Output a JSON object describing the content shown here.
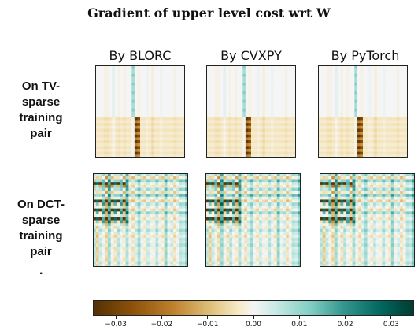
{
  "title": "Gradient of upper level cost wrt W",
  "chart_data": {
    "type": "heatmap",
    "title": "Gradient of upper level cost wrt W",
    "columns": [
      "By BLORC",
      "By CVXPY",
      "By PyTorch"
    ],
    "rows": [
      {
        "label": "On TV-\nsparse\ntraining\npair",
        "trailing_mark": ""
      },
      {
        "label": "On DCT-\nsparse\ntraining\npair",
        "trailing_mark": "."
      }
    ],
    "colorbar": {
      "colormap": "BrBG",
      "range": [
        -0.035,
        0.035
      ],
      "ticks": [
        -0.03,
        -0.02,
        -0.01,
        0.0,
        0.01,
        0.02,
        0.03
      ],
      "tick_labels": [
        "−0.03",
        "−0.02",
        "−0.01",
        "0.00",
        "0.01",
        "0.02",
        "0.03"
      ]
    },
    "grid_size": 32,
    "panels_identical_across_columns": true,
    "tv_pattern": {
      "description_values": "column-structured gradient; strong negative columns",
      "base_row_values": [
        0.0,
        0.0,
        0.0,
        -0.001,
        -0.001,
        0.0,
        0.002,
        0.0,
        -0.001,
        0.0,
        -0.001,
        0.0,
        0.0,
        0.003,
        0.0,
        -0.001,
        0.0,
        0.0,
        0.001,
        0.0,
        -0.002,
        0.0,
        0.0,
        0.001,
        0.0,
        0.0,
        0.0,
        0.0,
        -0.001,
        0.0,
        0.0,
        0.0
      ],
      "band_rows_start": 18,
      "band_rows_end": 31,
      "band_offset": -0.004,
      "strong_columns": [
        {
          "col": 14,
          "value": -0.033
        },
        {
          "col": 15,
          "value": -0.028
        }
      ],
      "light_teal_column": {
        "col": 13,
        "value": 0.012
      }
    },
    "dct_pattern": {
      "description_values": "checkered gradient with strong entries in upper-left block",
      "strong_rows": [
        3,
        9,
        12,
        15
      ],
      "strong_cols": [
        0,
        2,
        4,
        6,
        8,
        10
      ],
      "strong_value": -0.034,
      "positive_value": 0.03,
      "row_variations": [
        0.003,
        -0.004,
        0.006,
        0.0,
        -0.002,
        0.004,
        -0.003,
        0.007,
        0.0,
        -0.004,
        0.003,
        0.0,
        -0.003,
        0.005,
        0.0,
        -0.002,
        0.002,
        0.0,
        -0.001,
        0.003,
        0.0,
        -0.002,
        0.001,
        0.0,
        0.002,
        -0.001,
        0.0,
        0.001,
        0.0,
        -0.001,
        0.002,
        0.0
      ],
      "col_variations": [
        0.004,
        -0.005,
        0.003,
        0.0,
        -0.004,
        0.006,
        0.0,
        -0.003,
        0.004,
        0.0,
        -0.002,
        0.005,
        0.0,
        -0.003,
        0.002,
        0.006,
        0.0,
        -0.002,
        0.003,
        0.0,
        -0.001,
        0.004,
        0.0,
        -0.002,
        0.007,
        0.0,
        0.002,
        -0.003,
        0.0,
        0.004,
        0.003,
        0.008
      ]
    }
  }
}
